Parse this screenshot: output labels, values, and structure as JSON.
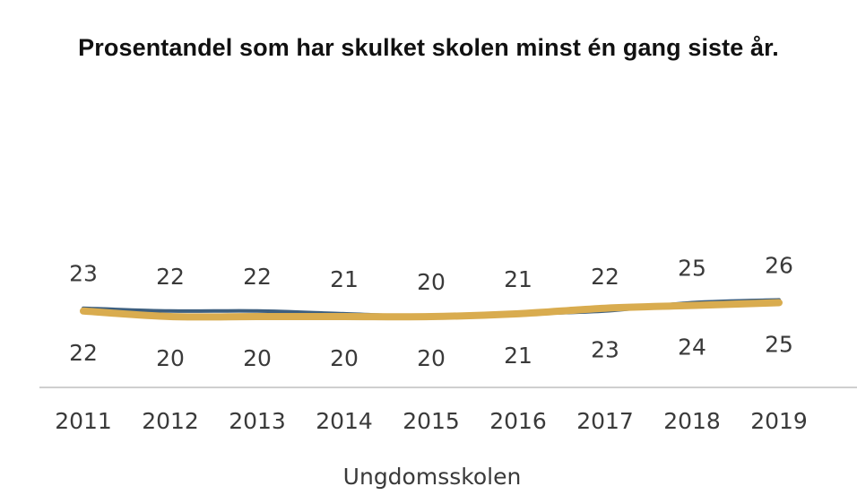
{
  "chart_data": {
    "type": "line",
    "title": "Prosentandel som har skulket skolen minst én gang siste år.",
    "xlabel": "Ungdomsskolen",
    "ylabel": "",
    "categories": [
      "2011",
      "2012",
      "2013",
      "2014",
      "2015",
      "2016",
      "2017",
      "2018",
      "2019"
    ],
    "series": [
      {
        "color": "#3d5f7f",
        "label_position": "above",
        "values": [
          23,
          22,
          22,
          21,
          20,
          21,
          22,
          25,
          26
        ]
      },
      {
        "color": "#d9ac4f",
        "label_position": "below",
        "values": [
          22,
          20,
          20,
          20,
          20,
          21,
          23,
          24,
          25
        ]
      }
    ],
    "grid": false,
    "legend": "none"
  }
}
